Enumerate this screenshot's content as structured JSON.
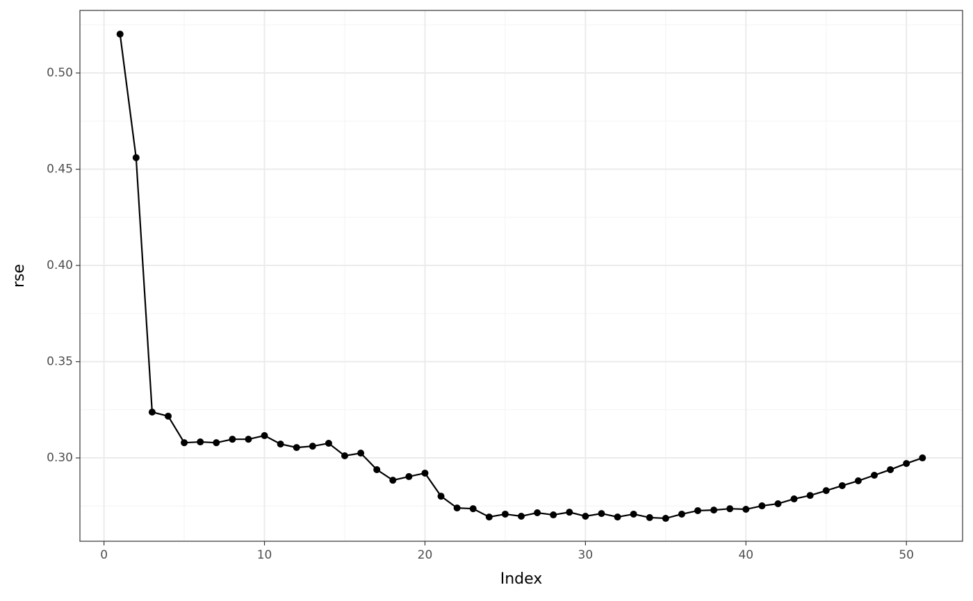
{
  "chart_data": {
    "type": "line",
    "x_label": "Index",
    "y_label": "rse",
    "x": [
      1,
      2,
      3,
      4,
      5,
      6,
      7,
      8,
      9,
      10,
      11,
      12,
      13,
      14,
      15,
      16,
      17,
      18,
      19,
      20,
      21,
      22,
      23,
      24,
      25,
      26,
      27,
      28,
      29,
      30,
      31,
      32,
      33,
      34,
      35,
      36,
      37,
      38,
      39,
      40,
      41,
      42,
      43,
      44,
      45,
      46,
      47,
      48,
      49,
      50,
      51
    ],
    "series": [
      {
        "color": "#000000",
        "values": [
          0.5202,
          0.456,
          0.3238,
          0.3217,
          0.3079,
          0.3083,
          0.3079,
          0.3097,
          0.3097,
          0.3116,
          0.3072,
          0.3054,
          0.3061,
          0.3076,
          0.3011,
          0.3025,
          0.2939,
          0.2884,
          0.2903,
          0.2921,
          0.2801,
          0.274,
          0.2736,
          0.2693,
          0.2708,
          0.2697,
          0.2715,
          0.2704,
          0.2718,
          0.2697,
          0.2711,
          0.2693,
          0.2708,
          0.269,
          0.2686,
          0.2708,
          0.2726,
          0.2729,
          0.2736,
          0.2733,
          0.2751,
          0.2762,
          0.2787,
          0.2805,
          0.283,
          0.2856,
          0.2881,
          0.291,
          0.2939,
          0.2971,
          0.3
        ]
      }
    ],
    "xlim": [
      -1.5,
      53.5
    ],
    "ylim": [
      0.2567,
      0.5325
    ],
    "xticks": [
      0,
      10,
      20,
      30,
      40,
      50
    ],
    "yticks": [
      {
        "value": 0.3,
        "label": "0.30"
      },
      0.35,
      {
        "value": 0.4,
        "label": "0.40"
      },
      0.45,
      {
        "value": 0.5,
        "label": "0.50"
      }
    ],
    "x_minor_grid": [
      5,
      15,
      25,
      35,
      45
    ],
    "y_minor_grid": [
      0.275,
      0.325,
      0.375,
      0.425,
      0.475,
      0.525
    ],
    "grid": true
  }
}
